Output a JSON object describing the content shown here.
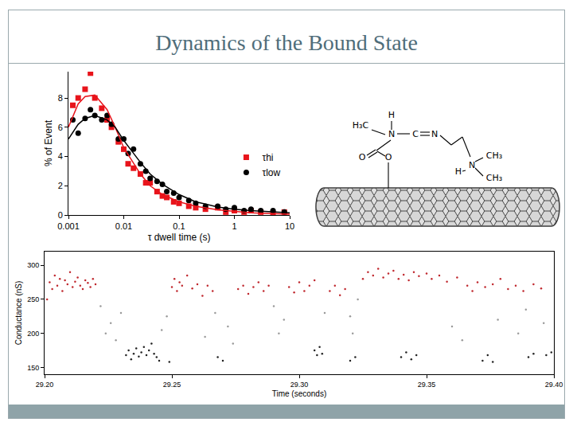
{
  "slide": {
    "title": "Dynamics of the Bound State"
  },
  "diagram": {
    "labels": [
      "H",
      "H₃C",
      "N",
      "C",
      "N",
      "O",
      "O",
      "CH₃",
      "H",
      "N",
      "CH₃"
    ]
  },
  "chart_data": [
    {
      "type": "scatter",
      "x_label": "τ dwell time (s)",
      "y_label": "% of Event",
      "log": "x",
      "xlim": [
        0.001,
        10
      ],
      "xticks": [
        0.001,
        0.01,
        0.1,
        1,
        10
      ],
      "ylim": [
        0,
        9.8
      ],
      "yticks": [
        0,
        2,
        4,
        6,
        8
      ],
      "grid": false,
      "legend": "right",
      "series": [
        {
          "name": "τhi",
          "type": "scatter",
          "color": "#e8141b",
          "marker": "square",
          "x": [
            0.0012,
            0.0015,
            0.002,
            0.0025,
            0.003,
            0.004,
            0.005,
            0.006,
            0.008,
            0.01,
            0.012,
            0.015,
            0.02,
            0.025,
            0.03,
            0.04,
            0.05,
            0.06,
            0.08,
            0.1,
            0.15,
            0.2,
            0.3,
            0.5,
            0.7,
            1,
            1.5,
            2,
            3,
            5,
            8
          ],
          "values": [
            7.5,
            8.0,
            8.6,
            9.7,
            8.0,
            7.3,
            6.5,
            6.0,
            5.0,
            4.5,
            3.5,
            3.2,
            2.8,
            2.2,
            2.2,
            1.6,
            1.3,
            1.2,
            0.9,
            0.8,
            0.6,
            0.5,
            0.4,
            0.5,
            0.2,
            0.3,
            0.2,
            0.3,
            0.2,
            0.1,
            0.2
          ]
        },
        {
          "name": "τlow",
          "type": "scatter",
          "color": "#000000",
          "marker": "circle",
          "x": [
            0.0012,
            0.0015,
            0.002,
            0.0025,
            0.003,
            0.004,
            0.005,
            0.006,
            0.008,
            0.01,
            0.012,
            0.015,
            0.02,
            0.025,
            0.03,
            0.04,
            0.05,
            0.06,
            0.08,
            0.1,
            0.15,
            0.2,
            0.3,
            0.5,
            0.7,
            1,
            1.5,
            2,
            3,
            5,
            8
          ],
          "values": [
            6.5,
            5.6,
            6.6,
            7.2,
            6.8,
            6.5,
            6.8,
            6.2,
            5.2,
            5.2,
            4.2,
            4.5,
            3.5,
            3.0,
            2.5,
            2.3,
            2.1,
            1.6,
            1.5,
            1.2,
            1.0,
            0.8,
            0.6,
            0.6,
            0.4,
            0.5,
            0.3,
            0.4,
            0.3,
            0.3,
            0.2
          ]
        },
        {
          "type": "line",
          "color": "#e8141b",
          "x": [
            0.001,
            0.0015,
            0.002,
            0.003,
            0.005,
            0.007,
            0.01,
            0.02,
            0.03,
            0.05,
            0.1,
            0.2,
            0.5,
            1,
            2,
            5,
            10
          ],
          "values": [
            6.0,
            7.6,
            8.1,
            8.2,
            7.2,
            6.0,
            4.6,
            2.8,
            2.0,
            1.4,
            0.9,
            0.6,
            0.35,
            0.25,
            0.15,
            0.1,
            0.05
          ]
        },
        {
          "type": "line",
          "color": "#000000",
          "x": [
            0.001,
            0.0015,
            0.002,
            0.003,
            0.005,
            0.007,
            0.01,
            0.02,
            0.03,
            0.05,
            0.1,
            0.2,
            0.5,
            1,
            2,
            5,
            10
          ],
          "values": [
            5.2,
            6.2,
            6.6,
            6.8,
            6.5,
            6.0,
            5.1,
            3.6,
            2.8,
            2.1,
            1.4,
            0.9,
            0.55,
            0.4,
            0.3,
            0.2,
            0.15
          ]
        }
      ]
    },
    {
      "type": "scatter",
      "x_label": "Time (seconds)",
      "y_label": "Conductance (nS)",
      "xlim": [
        29.2,
        29.4
      ],
      "xticks": [
        {
          "value": 29.2,
          "label": "29.20"
        },
        {
          "value": 29.25,
          "label": "29.25"
        },
        {
          "value": 29.3,
          "label": "29.30"
        },
        {
          "value": 29.35,
          "label": "29.35"
        },
        {
          "value": 29.4,
          "label": "29.40"
        }
      ],
      "ylim": [
        140,
        320
      ],
      "yticks": [
        150,
        200,
        250,
        300
      ],
      "grid": false,
      "series": [
        {
          "type": "scatter",
          "color": "#c0282e",
          "marker": "dot",
          "x": [
            29.201,
            29.202,
            29.203,
            29.204,
            29.205,
            29.206,
            29.207,
            29.208,
            29.209,
            29.21,
            29.211,
            29.212,
            29.213,
            29.214,
            29.215,
            29.216,
            29.217,
            29.218,
            29.219,
            29.22,
            29.25,
            29.251,
            29.252,
            29.253,
            29.254,
            29.256,
            29.258,
            29.26,
            29.262,
            29.264,
            29.266,
            29.276,
            29.278,
            29.28,
            29.282,
            29.284,
            29.286,
            29.288,
            29.296,
            29.298,
            29.3,
            29.302,
            29.304,
            29.306,
            29.312,
            29.314,
            29.316,
            29.318,
            29.325,
            29.327,
            29.329,
            29.331,
            29.333,
            29.335,
            29.337,
            29.339,
            29.341,
            29.343,
            29.345,
            29.347,
            29.35,
            29.352,
            29.355,
            29.358,
            29.362,
            29.366,
            29.368,
            29.37,
            29.373,
            29.376,
            29.379,
            29.382,
            29.385,
            29.388,
            29.392,
            29.395
          ],
          "values": [
            250,
            275,
            265,
            285,
            270,
            280,
            262,
            278,
            272,
            290,
            268,
            276,
            282,
            270,
            265,
            278,
            274,
            268,
            280,
            272,
            268,
            280,
            262,
            275,
            270,
            285,
            266,
            272,
            255,
            270,
            262,
            265,
            270,
            258,
            268,
            275,
            262,
            270,
            268,
            260,
            275,
            262,
            270,
            278,
            262,
            270,
            256,
            265,
            280,
            290,
            285,
            295,
            282,
            288,
            292,
            280,
            286,
            278,
            290,
            284,
            288,
            280,
            285,
            276,
            282,
            270,
            262,
            275,
            268,
            272,
            280,
            265,
            270,
            262,
            272,
            266
          ]
        },
        {
          "type": "scatter",
          "color": "#222222",
          "marker": "dot",
          "x": [
            29.232,
            29.233,
            29.234,
            29.235,
            29.236,
            29.237,
            29.238,
            29.239,
            29.24,
            29.241,
            29.242,
            29.243,
            29.244,
            29.245,
            29.249,
            29.268,
            29.27,
            29.306,
            29.307,
            29.308,
            29.309,
            29.32,
            29.322,
            29.34,
            29.342,
            29.344,
            29.346,
            29.372,
            29.374,
            29.376,
            29.39,
            29.392,
            29.397,
            29.399
          ],
          "values": [
            168,
            175,
            162,
            170,
            178,
            166,
            172,
            180,
            168,
            175,
            185,
            170,
            165,
            160,
            158,
            165,
            160,
            175,
            168,
            180,
            170,
            160,
            165,
            165,
            172,
            162,
            168,
            160,
            168,
            158,
            165,
            170,
            168,
            172
          ]
        },
        {
          "type": "scatter",
          "color": "#9a9a9a",
          "marker": "dot",
          "x": [
            29.222,
            29.224,
            29.226,
            29.228,
            29.23,
            29.246,
            29.248,
            29.263,
            29.267,
            29.272,
            29.274,
            29.29,
            29.292,
            29.294,
            29.31,
            29.32,
            29.321,
            29.323,
            29.36,
            29.364,
            29.378,
            29.386,
            29.389,
            29.396
          ],
          "values": [
            240,
            200,
            215,
            190,
            230,
            205,
            225,
            195,
            230,
            210,
            185,
            240,
            200,
            220,
            230,
            225,
            200,
            250,
            210,
            190,
            220,
            200,
            235,
            215
          ]
        }
      ]
    }
  ]
}
